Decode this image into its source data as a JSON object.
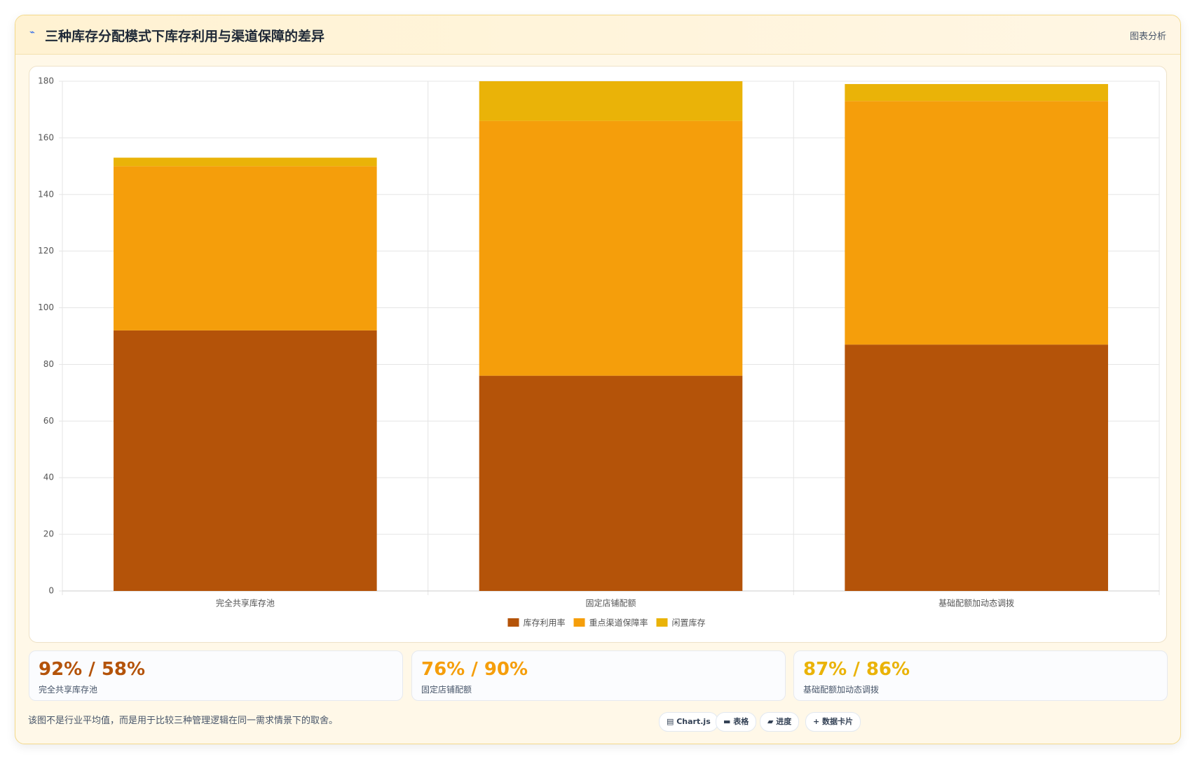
{
  "header": {
    "title": "三种库存分配模式下库存利用与渠道保障的差异",
    "tag": "图表分析"
  },
  "chart_data": {
    "type": "bar",
    "stacked": true,
    "categories": [
      "完全共享库存池",
      "固定店铺配额",
      "基础配额加动态调拨"
    ],
    "series": [
      {
        "name": "库存利用率",
        "color": "#b45309",
        "values": [
          92,
          76,
          87
        ]
      },
      {
        "name": "重点渠道保障率",
        "color": "#f59e0b",
        "values": [
          58,
          90,
          86
        ]
      },
      {
        "name": "闲置库存",
        "color": "#eab308",
        "values": [
          3,
          14,
          6
        ]
      }
    ],
    "ylim": [
      0,
      180
    ],
    "yticks": [
      0,
      20,
      40,
      60,
      80,
      100,
      120,
      140,
      160,
      180
    ],
    "grid": true,
    "legend_position": "bottom"
  },
  "cards": [
    {
      "value": "92% / 58%",
      "label": "完全共享库存池"
    },
    {
      "value": "76% / 90%",
      "label": "固定店铺配额"
    },
    {
      "value": "87% / 86%",
      "label": "基础配额加动态调拨"
    }
  ],
  "note": "该图不是行业平均值，而是用于比较三种管理逻辑在同一需求情景下的取舍。",
  "buttons": [
    "Chart.js",
    "表格",
    "进度",
    "数据卡片"
  ]
}
